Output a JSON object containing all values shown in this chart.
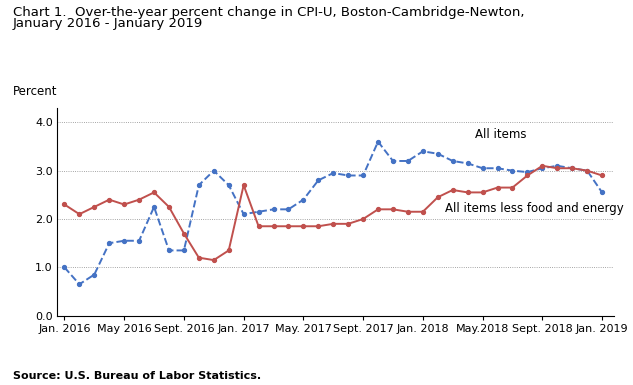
{
  "title_line1": "Chart 1.  Over-the-year percent change in CPI-U, Boston-Cambridge-Newton,",
  "title_line2": "January 2016 - January 2019",
  "ylabel_text": "Percent",
  "source": "Source: U.S. Bureau of Labor Statistics.",
  "ylim": [
    0.0,
    4.3
  ],
  "yticks": [
    0.0,
    1.0,
    2.0,
    3.0,
    4.0
  ],
  "xtick_labels": [
    "Jan. 2016",
    "May 2016",
    "Sept. 2016",
    "Jan. 2017",
    "May. 2017",
    "Sept. 2017",
    "Jan. 2018",
    "May.2018",
    "Sept. 2018",
    "Jan. 2019"
  ],
  "all_items": [
    1.0,
    0.65,
    0.85,
    1.5,
    1.55,
    1.55,
    2.25,
    1.35,
    1.35,
    2.7,
    3.0,
    2.7,
    2.1,
    2.15,
    2.2,
    2.2,
    2.4,
    2.8,
    2.95,
    2.9,
    2.9,
    3.6,
    3.2,
    3.2,
    3.4,
    3.35,
    3.2,
    3.15,
    3.05,
    3.05,
    3.0,
    2.97,
    3.05,
    3.1,
    3.05,
    3.0,
    2.55
  ],
  "all_items_less": [
    2.3,
    2.1,
    2.25,
    2.4,
    2.3,
    2.4,
    2.55,
    2.25,
    1.7,
    1.2,
    1.15,
    1.35,
    2.7,
    1.85,
    1.85,
    1.85,
    1.85,
    1.85,
    1.9,
    1.9,
    2.0,
    2.2,
    2.2,
    2.15,
    2.15,
    2.45,
    2.6,
    2.55,
    2.55,
    2.65,
    2.65,
    2.9,
    3.1,
    3.05,
    3.05,
    3.0,
    2.9
  ],
  "all_items_color": "#4472C4",
  "all_items_less_color": "#C0504D",
  "all_items_label": "All items",
  "all_items_less_label": "All items less food and energy",
  "background_color": "#ffffff",
  "grid_color": "#888888",
  "title_fontsize": 9.5,
  "annot_fontsize": 8.5,
  "tick_fontsize": 8,
  "source_fontsize": 8
}
